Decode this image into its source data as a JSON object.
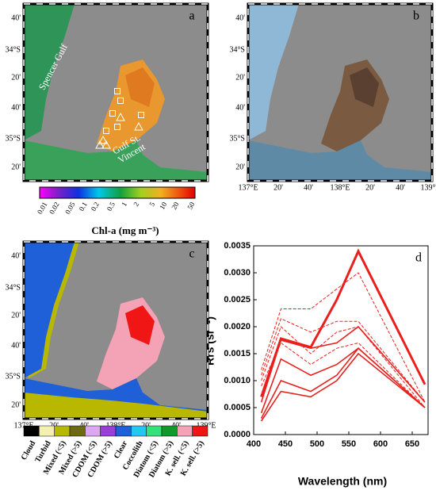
{
  "maps": {
    "panels": [
      "a",
      "b",
      "c"
    ],
    "lat_labels": [
      "40'",
      "34°S",
      "20'",
      "40'",
      "35°S",
      "20'"
    ],
    "lon_labels": [
      "137°E",
      "20'",
      "40'",
      "138°E",
      "20'",
      "40'",
      "139°E"
    ],
    "spencer_gulf": "Spencer Gulf",
    "gulf_st_vincent": [
      "Gulf St.",
      "Vincent"
    ]
  },
  "colorbar": {
    "ticks": [
      0.01,
      0.02,
      0.05,
      0.1,
      0.2,
      0.5,
      1,
      2,
      5,
      10,
      20,
      50
    ],
    "label": "Chl-a (mg m⁻³)"
  },
  "classes": [
    {
      "label": "Cloud",
      "color": "#000000"
    },
    {
      "label": "Turbid",
      "color": "#f4f0b0"
    },
    {
      "label": "Mixed (<5)",
      "color": "#b8b800"
    },
    {
      "label": "Mixed (>5)",
      "color": "#6e6a14"
    },
    {
      "label": "CDOM (<5)",
      "color": "#dba6f2"
    },
    {
      "label": "CDOM (>5)",
      "color": "#9a3fd6"
    },
    {
      "label": "Clear",
      "color": "#1f5fd8"
    },
    {
      "label": "Coccolith",
      "color": "#22c8f0"
    },
    {
      "label": "Diatom (<5)",
      "color": "#36e07a"
    },
    {
      "label": "Diatom (>5)",
      "color": "#119a2a"
    },
    {
      "label": "K. sell. (<5)",
      "color": "#f4a3b6"
    },
    {
      "label": "K. sell. (>5)",
      "color": "#f01616"
    }
  ],
  "chart_data": {
    "type": "line",
    "panel": "d",
    "xlabel": "Wavelength (nm)",
    "ylabel": "Rrs (sr⁻¹)",
    "x": [
      412,
      443,
      490,
      531,
      565,
      670
    ],
    "series": [
      {
        "color": "#e8211d",
        "style": "bold",
        "values": [
          0.0007,
          0.00178,
          0.00162,
          0.0025,
          0.0034,
          0.00093
        ]
      },
      {
        "color": "#e8211d",
        "style": "dashed",
        "values": [
          0.0012,
          0.00233,
          0.00233,
          0.0027,
          0.003,
          0.0006
        ]
      },
      {
        "color": "#e8211d",
        "style": "dashed",
        "values": [
          0.0011,
          0.00215,
          0.0019,
          0.0021,
          0.0021,
          0.0006
        ]
      },
      {
        "color": "#e8211d",
        "style": "dashed",
        "values": [
          0.001,
          0.002,
          0.0015,
          0.0019,
          0.002,
          0.0005
        ]
      },
      {
        "color": "#e8211d",
        "style": "dashed",
        "values": [
          0.0009,
          0.0017,
          0.0013,
          0.0016,
          0.0017,
          0.0005
        ]
      },
      {
        "color": "#e8211d",
        "style": "solid",
        "values": [
          0.0006,
          0.00175,
          0.0016,
          0.0017,
          0.002,
          0.0006
        ]
      },
      {
        "color": "#e8211d",
        "style": "solid",
        "values": [
          0.0004,
          0.0014,
          0.0011,
          0.0013,
          0.0016,
          0.0005
        ]
      },
      {
        "color": "#e8211d",
        "style": "solid",
        "values": [
          0.0003,
          0.001,
          0.0008,
          0.0011,
          0.0016,
          0.0005
        ]
      },
      {
        "color": "#e8211d",
        "style": "solid",
        "values": [
          0.00025,
          0.0008,
          0.0007,
          0.001,
          0.0015,
          0.0005
        ]
      }
    ],
    "xlim": [
      400,
      675
    ],
    "xticks": [
      400,
      450,
      500,
      550,
      600,
      650
    ],
    "ylim": [
      0,
      0.0035
    ],
    "yticks": [
      {
        "value": 0,
        "label": "0.0000"
      },
      {
        "value": 0.0005,
        "label": "0.0005"
      },
      {
        "value": 0.001,
        "label": "0.0010"
      },
      {
        "value": 0.0015,
        "label": "0.0015"
      },
      {
        "value": 0.002,
        "label": "0.0020"
      },
      {
        "value": 0.0025,
        "label": "0.0025"
      },
      {
        "value": 0.003,
        "label": "0.0030"
      },
      {
        "value": 0.0035,
        "label": "0.0035"
      }
    ]
  }
}
